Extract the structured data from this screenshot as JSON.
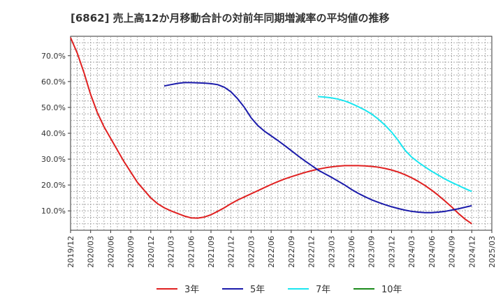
{
  "chart_data": {
    "type": "line",
    "title": "[6862]  売上高12か月移動合計の対前年同期増減率の平均値の推移",
    "xlabel": "",
    "ylabel": "",
    "x_ticks": [
      "2019/12",
      "2020/03",
      "2020/06",
      "2020/09",
      "2020/12",
      "2021/03",
      "2021/06",
      "2021/09",
      "2021/12",
      "2022/03",
      "2022/06",
      "2022/09",
      "2022/12",
      "2023/03",
      "2023/06",
      "2023/09",
      "2023/12",
      "2024/03",
      "2024/06",
      "2024/09",
      "2024/12",
      "2025/03"
    ],
    "y_ticks": [
      "10.0%",
      "20.0%",
      "30.0%",
      "40.0%",
      "50.0%",
      "60.0%",
      "70.0%"
    ],
    "ylim": [
      2.5,
      77.5
    ],
    "grid": true,
    "legend_position": "bottom",
    "series": [
      {
        "name": "3年",
        "color": "#e02020",
        "points": [
          [
            "2019/12",
            77.0
          ],
          [
            "2020/01",
            71.0
          ],
          [
            "2020/02",
            63.5
          ],
          [
            "2020/03",
            55.0
          ],
          [
            "2020/04",
            48.0
          ],
          [
            "2020/05",
            42.5
          ],
          [
            "2020/06",
            38.0
          ],
          [
            "2020/07",
            33.5
          ],
          [
            "2020/08",
            29.0
          ],
          [
            "2020/09",
            25.0
          ],
          [
            "2020/10",
            21.0
          ],
          [
            "2020/11",
            18.0
          ],
          [
            "2020/12",
            15.0
          ],
          [
            "2021/01",
            12.8
          ],
          [
            "2021/02",
            11.2
          ],
          [
            "2021/03",
            10.0
          ],
          [
            "2021/04",
            9.0
          ],
          [
            "2021/05",
            8.0
          ],
          [
            "2021/06",
            7.3
          ],
          [
            "2021/07",
            7.2
          ],
          [
            "2021/08",
            7.6
          ],
          [
            "2021/09",
            8.5
          ],
          [
            "2021/10",
            9.8
          ],
          [
            "2021/11",
            11.2
          ],
          [
            "2021/12",
            12.8
          ],
          [
            "2022/01",
            14.2
          ],
          [
            "2022/02",
            15.4
          ],
          [
            "2022/03",
            16.6
          ],
          [
            "2022/04",
            17.8
          ],
          [
            "2022/05",
            19.0
          ],
          [
            "2022/06",
            20.2
          ],
          [
            "2022/07",
            21.3
          ],
          [
            "2022/08",
            22.3
          ],
          [
            "2022/09",
            23.2
          ],
          [
            "2022/10",
            24.0
          ],
          [
            "2022/11",
            24.8
          ],
          [
            "2022/12",
            25.5
          ],
          [
            "2023/01",
            26.1
          ],
          [
            "2023/02",
            26.6
          ],
          [
            "2023/03",
            27.0
          ],
          [
            "2023/04",
            27.3
          ],
          [
            "2023/05",
            27.5
          ],
          [
            "2023/06",
            27.5
          ],
          [
            "2023/07",
            27.5
          ],
          [
            "2023/08",
            27.4
          ],
          [
            "2023/09",
            27.2
          ],
          [
            "2023/10",
            26.9
          ],
          [
            "2023/11",
            26.4
          ],
          [
            "2023/12",
            25.8
          ],
          [
            "2024/01",
            25.0
          ],
          [
            "2024/02",
            24.0
          ],
          [
            "2024/03",
            22.8
          ],
          [
            "2024/04",
            21.4
          ],
          [
            "2024/05",
            19.8
          ],
          [
            "2024/06",
            18.0
          ],
          [
            "2024/07",
            16.0
          ],
          [
            "2024/08",
            13.8
          ],
          [
            "2024/09",
            11.5
          ],
          [
            "2024/10",
            9.0
          ],
          [
            "2024/11",
            6.8
          ],
          [
            "2024/12",
            5.0
          ]
        ]
      },
      {
        "name": "5年",
        "color": "#1a1aaa",
        "points": [
          [
            "2021/02",
            58.3
          ],
          [
            "2021/03",
            58.8
          ],
          [
            "2021/04",
            59.3
          ],
          [
            "2021/05",
            59.6
          ],
          [
            "2021/06",
            59.6
          ],
          [
            "2021/07",
            59.5
          ],
          [
            "2021/08",
            59.4
          ],
          [
            "2021/09",
            59.2
          ],
          [
            "2021/10",
            58.8
          ],
          [
            "2021/11",
            57.8
          ],
          [
            "2021/12",
            56.0
          ],
          [
            "2022/01",
            53.3
          ],
          [
            "2022/02",
            50.0
          ],
          [
            "2022/03",
            46.0
          ],
          [
            "2022/04",
            43.0
          ],
          [
            "2022/05",
            40.8
          ],
          [
            "2022/06",
            39.0
          ],
          [
            "2022/07",
            37.2
          ],
          [
            "2022/08",
            35.3
          ],
          [
            "2022/09",
            33.3
          ],
          [
            "2022/10",
            31.3
          ],
          [
            "2022/11",
            29.4
          ],
          [
            "2022/12",
            27.6
          ],
          [
            "2023/01",
            25.8
          ],
          [
            "2023/02",
            24.4
          ],
          [
            "2023/03",
            23.0
          ],
          [
            "2023/04",
            21.5
          ],
          [
            "2023/05",
            20.0
          ],
          [
            "2023/06",
            18.3
          ],
          [
            "2023/07",
            16.8
          ],
          [
            "2023/08",
            15.5
          ],
          [
            "2023/09",
            14.3
          ],
          [
            "2023/10",
            13.3
          ],
          [
            "2023/11",
            12.4
          ],
          [
            "2023/12",
            11.6
          ],
          [
            "2024/01",
            10.9
          ],
          [
            "2024/02",
            10.3
          ],
          [
            "2024/03",
            9.8
          ],
          [
            "2024/04",
            9.5
          ],
          [
            "2024/05",
            9.3
          ],
          [
            "2024/06",
            9.3
          ],
          [
            "2024/07",
            9.5
          ],
          [
            "2024/08",
            9.8
          ],
          [
            "2024/09",
            10.3
          ],
          [
            "2024/10",
            10.8
          ],
          [
            "2024/11",
            11.4
          ],
          [
            "2024/12",
            12.0
          ]
        ]
      },
      {
        "name": "7年",
        "color": "#1ae6f0",
        "points": [
          [
            "2023/01",
            54.2
          ],
          [
            "2023/02",
            54.0
          ],
          [
            "2023/03",
            53.7
          ],
          [
            "2023/04",
            53.2
          ],
          [
            "2023/05",
            52.5
          ],
          [
            "2023/06",
            51.5
          ],
          [
            "2023/07",
            50.3
          ],
          [
            "2023/08",
            49.0
          ],
          [
            "2023/09",
            47.5
          ],
          [
            "2023/10",
            45.5
          ],
          [
            "2023/11",
            43.2
          ],
          [
            "2023/12",
            40.5
          ],
          [
            "2024/01",
            37.2
          ],
          [
            "2024/02",
            33.5
          ],
          [
            "2024/03",
            30.8
          ],
          [
            "2024/04",
            28.8
          ],
          [
            "2024/05",
            27.0
          ],
          [
            "2024/06",
            25.3
          ],
          [
            "2024/07",
            23.8
          ],
          [
            "2024/08",
            22.3
          ],
          [
            "2024/09",
            21.0
          ],
          [
            "2024/10",
            19.8
          ],
          [
            "2024/11",
            18.6
          ],
          [
            "2024/12",
            17.5
          ]
        ]
      },
      {
        "name": "10年",
        "color": "#1a8a1a",
        "points": []
      }
    ]
  }
}
